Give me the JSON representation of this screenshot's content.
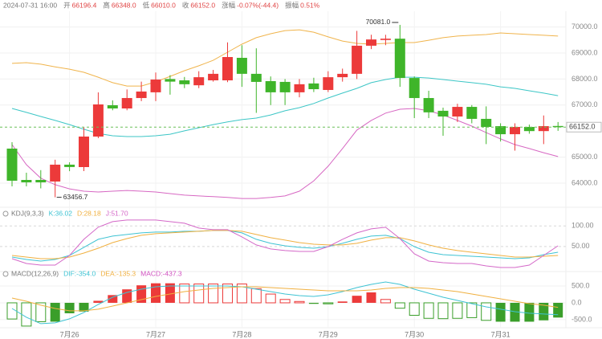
{
  "header": {
    "time": "2024-07-31 16:00",
    "fields": [
      {
        "label": "开",
        "value": "66196.4"
      },
      {
        "label": "高",
        "value": "66348.0"
      },
      {
        "label": "低",
        "value": "66010.0"
      },
      {
        "label": "收",
        "value": "66152.0"
      },
      {
        "label": "涨幅",
        "value": "-0.07%(-44.4)"
      },
      {
        "label": "振幅",
        "value": "0.51%"
      }
    ]
  },
  "chart_data": [
    {
      "type": "candlestick",
      "categories": [
        null,
        null,
        null,
        null,
        "7月26",
        null,
        null,
        null,
        null,
        null,
        "7月27",
        null,
        null,
        null,
        null,
        null,
        "7月28",
        null,
        null,
        null,
        null,
        null,
        "7月29",
        null,
        null,
        null,
        null,
        null,
        "7月30",
        null,
        null,
        null,
        null,
        null,
        "7月31",
        null,
        null,
        null,
        null
      ],
      "open": [
        65327,
        64123,
        64123,
        64062,
        64710,
        64617,
        65790,
        66993,
        66870,
        67270,
        67490,
        68000,
        67950,
        67760,
        67950,
        67950,
        68815,
        68200,
        67920,
        67890,
        67490,
        67830,
        67580,
        68070,
        68200,
        69280,
        69500,
        69550,
        68040,
        67270,
        66780,
        66560,
        66930,
        66470,
        66190,
        65880,
        66160,
        66000,
        66196.4
      ],
      "high": [
        65574,
        64401,
        64500,
        64900,
        64800,
        66160,
        67487,
        67180,
        67600,
        67900,
        68250,
        68150,
        68080,
        68300,
        68350,
        69410,
        69300,
        69180,
        68100,
        68000,
        68000,
        68050,
        68300,
        68400,
        69850,
        69700,
        69700,
        70081.0,
        68100,
        67550,
        66900,
        67050,
        67000,
        66950,
        66300,
        66300,
        66250,
        66600,
        66348.0
      ],
      "low": [
        63877,
        63877,
        63800,
        63456.7,
        64460,
        64463,
        65728,
        66800,
        66800,
        67150,
        67150,
        67400,
        67650,
        67650,
        67900,
        67880,
        67700,
        66700,
        67000,
        67000,
        67300,
        67500,
        67500,
        67900,
        68000,
        69150,
        69300,
        67700,
        66500,
        66500,
        65820,
        66350,
        66300,
        65500,
        65600,
        65250,
        65900,
        65500,
        66010.0
      ],
      "close": [
        64093,
        64031,
        64031,
        64710,
        64620,
        65790,
        67024,
        66870,
        67270,
        67520,
        67980,
        67900,
        67800,
        68070,
        68200,
        68845,
        68200,
        67890,
        67490,
        67490,
        67800,
        67610,
        68070,
        68200,
        69280,
        69520,
        69550,
        68040,
        67270,
        66720,
        66560,
        66930,
        66470,
        66160,
        65880,
        66160,
        66000,
        66190,
        66152.0
      ],
      "up_color": "#ec3a3a",
      "down_color": "#3fb52a",
      "overlays": [
        {
          "color": "#f0b44c",
          "values": [
            68600,
            68630,
            68570,
            68470,
            68380,
            68260,
            68070,
            67860,
            67730,
            67730,
            67890,
            68100,
            68320,
            68510,
            68720,
            69030,
            69340,
            69590,
            69740,
            69860,
            69890,
            69800,
            69620,
            69460,
            69370,
            69340,
            69370,
            69400,
            69400,
            69490,
            69590,
            69650,
            69680,
            69710,
            69770,
            69740,
            69710,
            69680,
            69650
          ]
        },
        {
          "color": "#3cc6c6",
          "values": [
            66870,
            66720,
            66560,
            66410,
            66250,
            66070,
            65910,
            65820,
            65790,
            65790,
            65820,
            65880,
            66010,
            66130,
            66250,
            66350,
            66440,
            66500,
            66620,
            66780,
            66900,
            67060,
            67270,
            67460,
            67640,
            67860,
            67980,
            68070,
            68070,
            68040,
            67980,
            67920,
            67860,
            67800,
            67700,
            67640,
            67550,
            67460,
            67360
          ]
        },
        {
          "color": "#d768c3",
          "values": [
            65480,
            64710,
            64190,
            63940,
            63780,
            63690,
            63660,
            63690,
            63720,
            63690,
            63660,
            63600,
            63540,
            63510,
            63480,
            63450,
            63410,
            63410,
            63450,
            63510,
            63690,
            64090,
            64650,
            65330,
            66040,
            66410,
            66690,
            66840,
            66870,
            66780,
            66620,
            66410,
            66190,
            65940,
            65700,
            65480,
            65330,
            65170,
            65020
          ]
        }
      ],
      "ylim": [
        63259,
        70419
      ],
      "yticks": [
        {
          "value": 64000,
          "label": "64000.0"
        },
        {
          "value": 65000,
          "label": "65000.0"
        },
        {
          "value": 67000,
          "label": "67000.0"
        },
        {
          "value": 68000,
          "label": "68000.0"
        },
        {
          "value": 69000,
          "label": "69000.0"
        },
        {
          "value": 70000,
          "label": "70000.0"
        }
      ],
      "grid_style": "solid",
      "last_price": {
        "value": 66152.0,
        "label": "66152.0"
      },
      "max_label": "70081.0",
      "min_label": "63456.7"
    },
    {
      "type": "line",
      "title": "KDJ(9,3,3)",
      "series": [
        {
          "name": "K:36.02",
          "color": "#3ec3d3",
          "values": [
            24.3,
            18.4,
            14.5,
            18.4,
            28.2,
            47.8,
            67.4,
            75.2,
            79.2,
            83.1,
            85.0,
            85.0,
            87.0,
            87.0,
            89.0,
            89.0,
            83.1,
            67.4,
            57.6,
            51.7,
            47.8,
            45.8,
            49.7,
            57.6,
            67.4,
            75.2,
            77.2,
            69.3,
            49.7,
            36.0,
            30.1,
            28.2,
            26.2,
            24.3,
            22.3,
            20.3,
            22.3,
            30.1,
            36.02
          ]
        },
        {
          "name": "D:28.18",
          "color": "#f0b040",
          "values": [
            28.2,
            24.3,
            20.3,
            20.3,
            24.3,
            34.1,
            45.8,
            59.5,
            69.3,
            77.2,
            81.1,
            83.1,
            85.0,
            87.0,
            89.0,
            89.0,
            87.0,
            79.2,
            71.3,
            65.5,
            59.5,
            55.6,
            53.7,
            53.7,
            57.6,
            65.5,
            71.3,
            71.3,
            63.5,
            53.7,
            45.8,
            40.0,
            36.0,
            32.1,
            28.2,
            24.3,
            24.3,
            26.2,
            28.18
          ]
        },
        {
          "name": "J:51.70",
          "color": "#d468c8",
          "values": [
            20.3,
            8.6,
            4.7,
            4.7,
            28.2,
            67.4,
            97.0,
            110.5,
            114.4,
            114.4,
            114.4,
            110.5,
            106.6,
            94.8,
            90.9,
            90.9,
            73.3,
            53.7,
            43.9,
            40.0,
            38.0,
            38.0,
            49.7,
            67.4,
            83.1,
            92.9,
            96.8,
            69.3,
            32.1,
            14.5,
            10.5,
            8.6,
            8.6,
            2.7,
            -1.2,
            -1.2,
            4.7,
            28.2,
            51.7
          ]
        }
      ],
      "ylim": [
        -9,
        122
      ],
      "yticks": [
        {
          "value": 100,
          "label": "100.00"
        },
        {
          "value": 50,
          "label": "50.00"
        }
      ],
      "grid_style": "dashed"
    },
    {
      "type": "bar",
      "title": "MACD(12,26,9)",
      "name": "MACD:-437.3",
      "name_color": "#d050c0",
      "values": [
        -480,
        -690,
        -560,
        -560,
        -310,
        -260,
        60,
        230,
        400,
        520,
        580,
        580,
        560,
        560,
        560,
        560,
        560,
        420,
        260,
        100,
        40,
        -30,
        -30,
        40,
        210,
        310,
        100,
        -160,
        -370,
        -460,
        -470,
        -460,
        -440,
        -520,
        -560,
        -560,
        -560,
        -520,
        -437.3
      ],
      "filled": [
        false,
        false,
        false,
        true,
        true,
        true,
        true,
        true,
        true,
        true,
        true,
        true,
        false,
        false,
        false,
        false,
        false,
        false,
        false,
        false,
        false,
        true,
        false,
        true,
        true,
        true,
        false,
        false,
        false,
        false,
        false,
        false,
        false,
        false,
        true,
        true,
        true,
        true,
        true
      ],
      "up_color": "#ec3a3a",
      "down_color": "#3a9e2a",
      "series": [
        {
          "name": "DIF:-354.0",
          "color": "#3ec3d3",
          "values": [
            -167,
            -428,
            -619,
            -595,
            -476,
            -286,
            -48,
            167,
            309,
            405,
            476,
            500,
            500,
            500,
            500,
            500,
            476,
            405,
            333,
            262,
            214,
            190,
            238,
            333,
            452,
            547,
            619,
            547,
            405,
            286,
            167,
            71,
            -24,
            -119,
            -190,
            -262,
            -309,
            -333,
            -354.0
          ]
        },
        {
          "name": "DEA:-135.3",
          "color": "#f0b040",
          "values": [
            143,
            48,
            -71,
            -167,
            -238,
            -238,
            -190,
            -95,
            0,
            95,
            190,
            262,
            333,
            381,
            428,
            452,
            476,
            476,
            452,
            428,
            405,
            381,
            357,
            357,
            357,
            381,
            428,
            452,
            452,
            428,
            381,
            333,
            262,
            190,
            119,
            48,
            -24,
            -71,
            -135.3
          ]
        }
      ],
      "ylim": [
        -740,
        810
      ],
      "yticks": [
        {
          "value": 500,
          "label": "500.0"
        },
        {
          "value": 0,
          "label": "0.0"
        },
        {
          "value": -500,
          "label": "-500.0"
        }
      ],
      "grid_style": "solid"
    }
  ]
}
